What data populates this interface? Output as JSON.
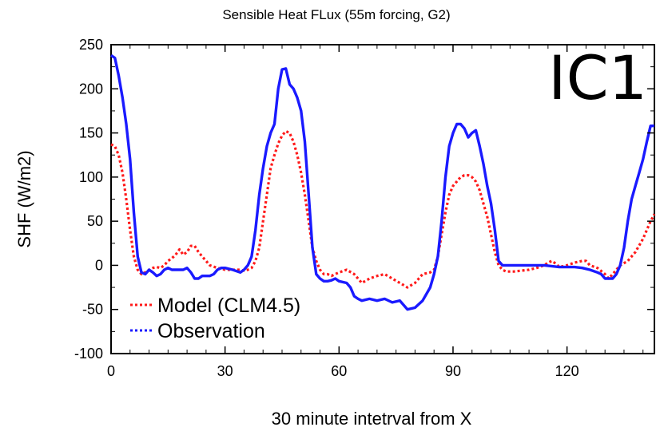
{
  "chart_data": {
    "type": "line",
    "title": "Sensible Heat FLux (55m forcing, G2)",
    "panel_label": "IC1",
    "xlabel": "30 minute intetrval from X",
    "ylabel": "SHF (W/m2)",
    "xlim": [
      0,
      143
    ],
    "ylim": [
      -100,
      250
    ],
    "xticks": [
      0,
      30,
      60,
      90,
      120
    ],
    "yticks": [
      -100,
      -50,
      0,
      50,
      100,
      150,
      200,
      250
    ],
    "legend_position": "bottom-left",
    "series": [
      {
        "name": "Model (CLM4.5)",
        "color": "#ff1a1a",
        "style": "dotted",
        "x": [
          0,
          1,
          2,
          3,
          4,
          5,
          6,
          7,
          8,
          9,
          10,
          11,
          12,
          13,
          14,
          15,
          16,
          17,
          18,
          19,
          20,
          21,
          22,
          23,
          24,
          25,
          26,
          28,
          30,
          32,
          34,
          35,
          36,
          37,
          38,
          39,
          40,
          41,
          42,
          43,
          44,
          45,
          46,
          47,
          48,
          49,
          50,
          51,
          52,
          53,
          54,
          55,
          56,
          57,
          58,
          60,
          62,
          64,
          66,
          68,
          70,
          72,
          74,
          76,
          78,
          80,
          82,
          84,
          85,
          86,
          87,
          88,
          89,
          90,
          91,
          92,
          93,
          94,
          95,
          96,
          97,
          98,
          99,
          100,
          101,
          102,
          103,
          104,
          106,
          110,
          112,
          114,
          115,
          116,
          117,
          118,
          120,
          122,
          124,
          125,
          126,
          128,
          130,
          131,
          132,
          134,
          136,
          138,
          140,
          142,
          143
        ],
        "values": [
          137,
          135,
          125,
          105,
          75,
          40,
          10,
          -5,
          -10,
          -8,
          -5,
          -3,
          -2,
          -3,
          0,
          5,
          8,
          12,
          18,
          12,
          15,
          22,
          22,
          15,
          10,
          5,
          0,
          -3,
          -5,
          -5,
          -5,
          -6,
          -5,
          -3,
          5,
          20,
          50,
          80,
          110,
          125,
          138,
          147,
          152,
          150,
          140,
          125,
          105,
          80,
          50,
          20,
          5,
          -5,
          -10,
          -10,
          -12,
          -8,
          -5,
          -10,
          -20,
          -15,
          -12,
          -10,
          -15,
          -20,
          -25,
          -20,
          -10,
          -8,
          -5,
          10,
          35,
          60,
          80,
          90,
          95,
          100,
          102,
          102,
          100,
          95,
          85,
          70,
          55,
          35,
          15,
          0,
          -5,
          -7,
          -7,
          -5,
          -3,
          0,
          3,
          5,
          2,
          -2,
          0,
          3,
          5,
          5,
          0,
          -3,
          -10,
          -15,
          -10,
          0,
          5,
          15,
          30,
          50,
          58
        ]
      },
      {
        "name": "Observation",
        "color": "#1a1aff",
        "style": "solid",
        "x": [
          0,
          1,
          2,
          3,
          4,
          5,
          6,
          7,
          8,
          9,
          10,
          11,
          12,
          13,
          14,
          15,
          16,
          17,
          18,
          19,
          20,
          21,
          22,
          23,
          24,
          25,
          26,
          27,
          28,
          29,
          30,
          32,
          34,
          35,
          36,
          37,
          38,
          39,
          40,
          41,
          42,
          43,
          44,
          45,
          46,
          47,
          48,
          49,
          50,
          51,
          52,
          53,
          54,
          55,
          56,
          57,
          58,
          59,
          60,
          62,
          63,
          64,
          65,
          66,
          68,
          70,
          72,
          74,
          76,
          77,
          78,
          80,
          82,
          84,
          85,
          86,
          87,
          88,
          89,
          90,
          91,
          92,
          93,
          94,
          95,
          96,
          97,
          98,
          99,
          100,
          101,
          102,
          103,
          104,
          106,
          110,
          114,
          118,
          122,
          124,
          126,
          128,
          129,
          130,
          131,
          132,
          133,
          134,
          135,
          136,
          137,
          138,
          139,
          140,
          141,
          142,
          143
        ],
        "values": [
          238,
          235,
          215,
          190,
          160,
          120,
          60,
          10,
          -8,
          -10,
          -5,
          -8,
          -12,
          -10,
          -5,
          -3,
          -5,
          -5,
          -5,
          -5,
          -3,
          -8,
          -15,
          -15,
          -12,
          -12,
          -12,
          -10,
          -5,
          -3,
          -3,
          -5,
          -8,
          -5,
          0,
          10,
          40,
          80,
          110,
          135,
          150,
          160,
          200,
          222,
          223,
          205,
          200,
          190,
          175,
          140,
          80,
          20,
          -10,
          -15,
          -18,
          -18,
          -17,
          -15,
          -18,
          -20,
          -25,
          -35,
          -38,
          -40,
          -38,
          -40,
          -38,
          -42,
          -40,
          -45,
          -50,
          -48,
          -40,
          -25,
          -10,
          10,
          50,
          100,
          135,
          150,
          160,
          160,
          155,
          145,
          150,
          153,
          135,
          115,
          90,
          70,
          40,
          5,
          0,
          0,
          0,
          0,
          0,
          -2,
          -2,
          -3,
          -5,
          -8,
          -10,
          -15,
          -15,
          -15,
          -10,
          0,
          20,
          50,
          75,
          90,
          105,
          120,
          140,
          158,
          158
        ]
      }
    ]
  }
}
